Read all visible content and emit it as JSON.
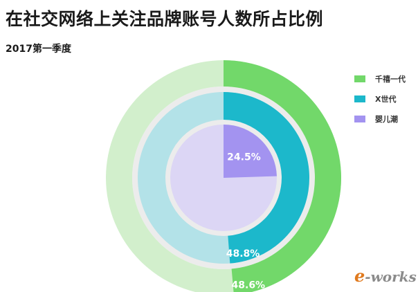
{
  "title": "在社交网络上关注品牌账号人数所占比例",
  "subtitle": "2017第一季度",
  "logo_text": "e-works",
  "chart_data": {
    "type": "pie",
    "title": "在社交网络上关注品牌账号人数所占比例",
    "subtitle": "2017第一季度",
    "legend_position": "right",
    "series": [
      {
        "name": "千禧一代",
        "value": 48.6,
        "label": "48.6%",
        "color": "#72d86a",
        "track_color": "#d2efcc"
      },
      {
        "name": "X世代",
        "value": 48.8,
        "label": "48.8%",
        "color": "#1cb8cb",
        "track_color": "#b3e2e8"
      },
      {
        "name": "婴儿潮",
        "value": 24.5,
        "label": "24.5%",
        "color": "#a393f0",
        "track_color": "#dcd6f5"
      }
    ]
  }
}
